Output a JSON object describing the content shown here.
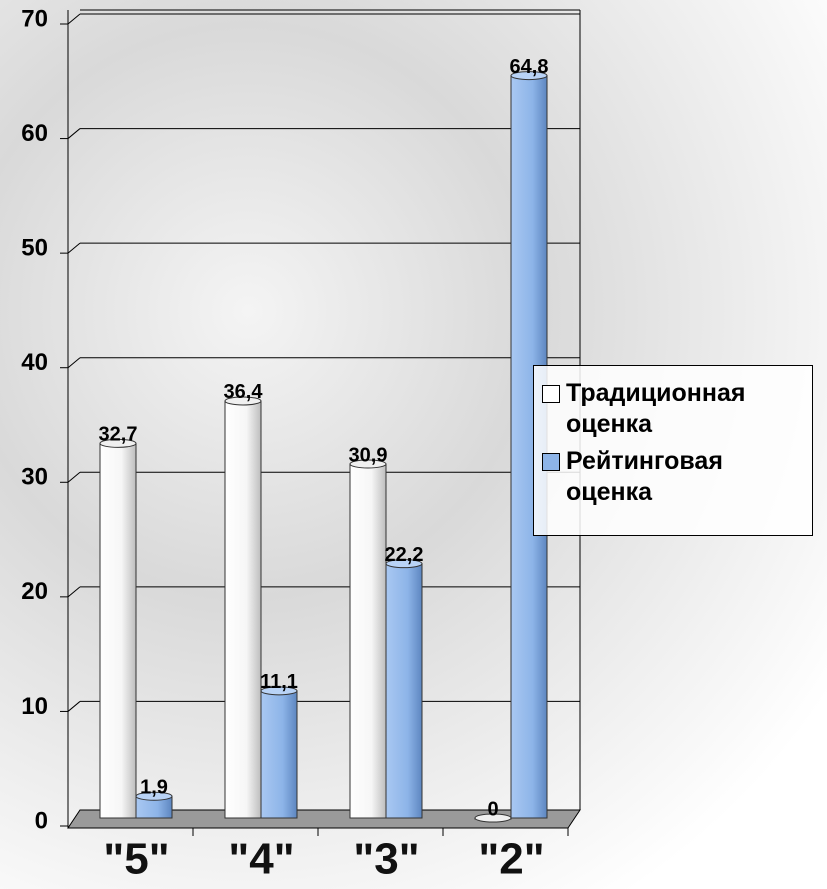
{
  "chart_data": {
    "type": "bar",
    "categories": [
      "\"5\"",
      "\"4\"",
      "\"3\"",
      "\"2\""
    ],
    "series": [
      {
        "name": "Традиционная оценка",
        "color": "#ffffff",
        "values": [
          32.7,
          36.4,
          30.9,
          0
        ],
        "value_labels": [
          "32,7",
          "36,4",
          "30,9",
          "0"
        ]
      },
      {
        "name": "Рейтинговая оценка",
        "color": "#8db4e8",
        "values": [
          1.9,
          11.1,
          22.2,
          64.8
        ],
        "value_labels": [
          "1,9",
          "11,1",
          "22,2",
          "64,8"
        ]
      }
    ],
    "ylim": [
      0,
      70
    ],
    "yticks": [
      0,
      10,
      20,
      30,
      40,
      50,
      60,
      70
    ],
    "grid": true,
    "legend": "right"
  }
}
